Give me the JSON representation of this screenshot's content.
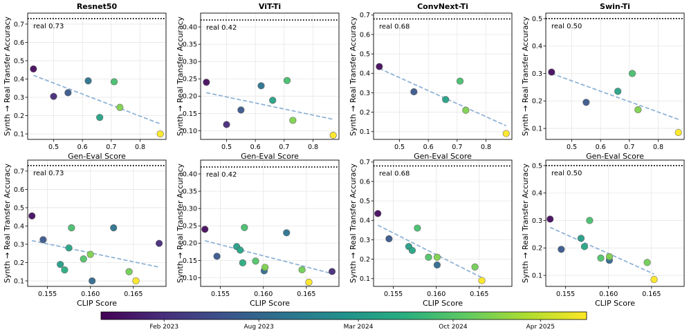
{
  "colorbar": {
    "ticks": [
      {
        "label": "Feb 2023",
        "frac": 0.13
      },
      {
        "label": "Aug 2023",
        "frac": 0.325
      },
      {
        "label": "Mar 2024",
        "frac": 0.53
      },
      {
        "label": "Oct 2024",
        "frac": 0.725
      },
      {
        "label": "Apr 2025",
        "frac": 0.905
      }
    ]
  },
  "chart_data": [
    {
      "type": "scatter",
      "title": "Resnet50",
      "xlabel": "Gen-Eval Score",
      "ylabel": "Synth → Real Transfer Accuracy",
      "xlim": [
        0.41,
        0.89
      ],
      "ylim": [
        0.07,
        0.76
      ],
      "xticks": [
        {
          "v": 0.5,
          "l": "0.5"
        },
        {
          "v": 0.6,
          "l": "0.6"
        },
        {
          "v": 0.7,
          "l": "0.7"
        },
        {
          "v": 0.8,
          "l": "0.8"
        }
      ],
      "yticks": [
        {
          "v": 0.1,
          "l": "0.1"
        },
        {
          "v": 0.2,
          "l": "0.2"
        },
        {
          "v": 0.3,
          "l": "0.3"
        },
        {
          "v": 0.4,
          "l": "0.4"
        },
        {
          "v": 0.5,
          "l": "0.5"
        },
        {
          "v": 0.6,
          "l": "0.6"
        },
        {
          "v": 0.7,
          "l": "0.7"
        }
      ],
      "real": 0.73,
      "real_label": "real 0.73",
      "trend": [
        [
          0.43,
          0.42
        ],
        [
          0.87,
          0.155
        ]
      ],
      "points": [
        [
          0.43,
          0.455,
          0.03
        ],
        [
          0.5,
          0.305,
          0.12
        ],
        [
          0.55,
          0.325,
          0.27
        ],
        [
          0.62,
          0.39,
          0.38
        ],
        [
          0.66,
          0.19,
          0.57
        ],
        [
          0.71,
          0.385,
          0.7
        ],
        [
          0.73,
          0.245,
          0.8
        ],
        [
          0.87,
          0.1,
          1.0
        ]
      ]
    },
    {
      "type": "scatter",
      "title": "ViT-Ti",
      "xlabel": "Gen-Eval Score",
      "ylabel": "Synth → Real Transfer Accuracy",
      "xlim": [
        0.41,
        0.89
      ],
      "ylim": [
        0.075,
        0.44
      ],
      "xticks": [
        {
          "v": 0.5,
          "l": "0.5"
        },
        {
          "v": 0.6,
          "l": "0.6"
        },
        {
          "v": 0.7,
          "l": "0.7"
        },
        {
          "v": 0.8,
          "l": "0.8"
        }
      ],
      "yticks": [
        {
          "v": 0.1,
          "l": "0.10"
        },
        {
          "v": 0.15,
          "l": "0.15"
        },
        {
          "v": 0.2,
          "l": "0.20"
        },
        {
          "v": 0.25,
          "l": "0.25"
        },
        {
          "v": 0.3,
          "l": "0.30"
        },
        {
          "v": 0.35,
          "l": "0.35"
        },
        {
          "v": 0.4,
          "l": "0.40"
        }
      ],
      "real": 0.42,
      "real_label": "real 0.42",
      "trend": [
        [
          0.43,
          0.21
        ],
        [
          0.87,
          0.133
        ]
      ],
      "points": [
        [
          0.43,
          0.24,
          0.03
        ],
        [
          0.5,
          0.118,
          0.12
        ],
        [
          0.55,
          0.16,
          0.27
        ],
        [
          0.62,
          0.23,
          0.38
        ],
        [
          0.66,
          0.188,
          0.57
        ],
        [
          0.71,
          0.245,
          0.7
        ],
        [
          0.73,
          0.13,
          0.8
        ],
        [
          0.87,
          0.087,
          1.0
        ]
      ]
    },
    {
      "type": "scatter",
      "title": "ConvNext-Ti",
      "xlabel": "Gen-Eval Score",
      "ylabel": "Synth → Real Transfer Accuracy",
      "xlim": [
        0.41,
        0.89
      ],
      "ylim": [
        0.06,
        0.71
      ],
      "xticks": [
        {
          "v": 0.5,
          "l": "0.5"
        },
        {
          "v": 0.6,
          "l": "0.6"
        },
        {
          "v": 0.7,
          "l": "0.7"
        },
        {
          "v": 0.8,
          "l": "0.8"
        }
      ],
      "yticks": [
        {
          "v": 0.1,
          "l": "0.1"
        },
        {
          "v": 0.2,
          "l": "0.2"
        },
        {
          "v": 0.3,
          "l": "0.3"
        },
        {
          "v": 0.4,
          "l": "0.4"
        },
        {
          "v": 0.5,
          "l": "0.5"
        },
        {
          "v": 0.6,
          "l": "0.6"
        },
        {
          "v": 0.7,
          "l": "0.7"
        }
      ],
      "real": 0.68,
      "real_label": "real 0.68",
      "trend": [
        [
          0.43,
          0.425
        ],
        [
          0.87,
          0.13
        ]
      ],
      "points": [
        [
          0.43,
          0.435,
          0.03
        ],
        [
          0.55,
          0.305,
          0.27
        ],
        [
          0.66,
          0.265,
          0.57
        ],
        [
          0.71,
          0.36,
          0.7
        ],
        [
          0.73,
          0.21,
          0.8
        ],
        [
          0.87,
          0.09,
          1.0
        ]
      ]
    },
    {
      "type": "scatter",
      "title": "Swin-Ti",
      "xlabel": "Gen-Eval Score",
      "ylabel": "Synth → Real Transfer Accuracy",
      "xlim": [
        0.41,
        0.89
      ],
      "ylim": [
        0.06,
        0.52
      ],
      "xticks": [
        {
          "v": 0.5,
          "l": "0.5"
        },
        {
          "v": 0.6,
          "l": "0.6"
        },
        {
          "v": 0.7,
          "l": "0.7"
        },
        {
          "v": 0.8,
          "l": "0.8"
        }
      ],
      "yticks": [
        {
          "v": 0.1,
          "l": "0.1"
        },
        {
          "v": 0.2,
          "l": "0.2"
        },
        {
          "v": 0.3,
          "l": "0.3"
        },
        {
          "v": 0.4,
          "l": "0.4"
        },
        {
          "v": 0.5,
          "l": "0.5"
        }
      ],
      "real": 0.5,
      "real_label": "real 0.50",
      "trend": [
        [
          0.43,
          0.3
        ],
        [
          0.87,
          0.133
        ]
      ],
      "points": [
        [
          0.43,
          0.305,
          0.03
        ],
        [
          0.55,
          0.195,
          0.27
        ],
        [
          0.66,
          0.235,
          0.57
        ],
        [
          0.71,
          0.3,
          0.7
        ],
        [
          0.73,
          0.168,
          0.8
        ],
        [
          0.87,
          0.085,
          1.0
        ]
      ]
    },
    {
      "type": "scatter",
      "title": "",
      "xlabel": "CLIP Score",
      "ylabel": "Synth → Real Transfer Accuracy",
      "xlim": [
        0.1527,
        0.1688
      ],
      "ylim": [
        0.07,
        0.76
      ],
      "xticks": [
        {
          "v": 0.155,
          "l": "0.155"
        },
        {
          "v": 0.16,
          "l": "0.160"
        },
        {
          "v": 0.165,
          "l": "0.165"
        }
      ],
      "yticks": [
        {
          "v": 0.1,
          "l": "0.1"
        },
        {
          "v": 0.2,
          "l": "0.2"
        },
        {
          "v": 0.3,
          "l": "0.3"
        },
        {
          "v": 0.4,
          "l": "0.4"
        },
        {
          "v": 0.5,
          "l": "0.5"
        },
        {
          "v": 0.6,
          "l": "0.6"
        },
        {
          "v": 0.7,
          "l": "0.7"
        }
      ],
      "real": 0.73,
      "real_label": "real 0.73",
      "trend": [
        [
          0.1532,
          0.32
        ],
        [
          0.168,
          0.175
        ]
      ],
      "points": [
        [
          0.1532,
          0.455,
          0.03
        ],
        [
          0.168,
          0.305,
          0.12
        ],
        [
          0.1545,
          0.325,
          0.27
        ],
        [
          0.1627,
          0.39,
          0.38
        ],
        [
          0.1602,
          0.1,
          0.34
        ],
        [
          0.1565,
          0.19,
          0.55
        ],
        [
          0.1575,
          0.28,
          0.58
        ],
        [
          0.1578,
          0.39,
          0.7
        ],
        [
          0.157,
          0.16,
          0.62
        ],
        [
          0.1592,
          0.22,
          0.72
        ],
        [
          0.16,
          0.245,
          0.8
        ],
        [
          0.1645,
          0.15,
          0.78
        ],
        [
          0.1653,
          0.1,
          1.0
        ]
      ]
    },
    {
      "type": "scatter",
      "title": "",
      "xlabel": "CLIP Score",
      "ylabel": "Synth → Real Transfer Accuracy",
      "xlim": [
        0.1527,
        0.1688
      ],
      "ylim": [
        0.075,
        0.44
      ],
      "xticks": [
        {
          "v": 0.155,
          "l": "0.155"
        },
        {
          "v": 0.16,
          "l": "0.160"
        },
        {
          "v": 0.165,
          "l": "0.165"
        }
      ],
      "yticks": [
        {
          "v": 0.1,
          "l": "0.10"
        },
        {
          "v": 0.15,
          "l": "0.15"
        },
        {
          "v": 0.2,
          "l": "0.20"
        },
        {
          "v": 0.25,
          "l": "0.25"
        },
        {
          "v": 0.3,
          "l": "0.30"
        },
        {
          "v": 0.35,
          "l": "0.35"
        },
        {
          "v": 0.4,
          "l": "0.40"
        }
      ],
      "real": 0.42,
      "real_label": "real 0.42",
      "trend": [
        [
          0.1532,
          0.207
        ],
        [
          0.168,
          0.112
        ]
      ],
      "points": [
        [
          0.1532,
          0.24,
          0.03
        ],
        [
          0.168,
          0.118,
          0.12
        ],
        [
          0.1546,
          0.162,
          0.27
        ],
        [
          0.1627,
          0.23,
          0.38
        ],
        [
          0.1601,
          0.12,
          0.34
        ],
        [
          0.1569,
          0.19,
          0.55
        ],
        [
          0.1573,
          0.18,
          0.58
        ],
        [
          0.1578,
          0.245,
          0.7
        ],
        [
          0.1576,
          0.143,
          0.62
        ],
        [
          0.1591,
          0.148,
          0.72
        ],
        [
          0.1602,
          0.13,
          0.8
        ],
        [
          0.1645,
          0.123,
          0.78
        ],
        [
          0.1653,
          0.087,
          1.0
        ]
      ]
    },
    {
      "type": "scatter",
      "title": "",
      "xlabel": "CLIP Score",
      "ylabel": "Synth → Real Transfer Accuracy",
      "xlim": [
        0.1527,
        0.1688
      ],
      "ylim": [
        0.06,
        0.71
      ],
      "xticks": [
        {
          "v": 0.155,
          "l": "0.155"
        },
        {
          "v": 0.16,
          "l": "0.160"
        },
        {
          "v": 0.165,
          "l": "0.165"
        }
      ],
      "yticks": [
        {
          "v": 0.1,
          "l": "0.1"
        },
        {
          "v": 0.2,
          "l": "0.2"
        },
        {
          "v": 0.3,
          "l": "0.3"
        },
        {
          "v": 0.4,
          "l": "0.4"
        },
        {
          "v": 0.5,
          "l": "0.5"
        },
        {
          "v": 0.6,
          "l": "0.6"
        },
        {
          "v": 0.7,
          "l": "0.7"
        }
      ],
      "real": 0.68,
      "real_label": "real 0.68",
      "trend": [
        [
          0.1532,
          0.375
        ],
        [
          0.1653,
          0.105
        ]
      ],
      "points": [
        [
          0.1532,
          0.435,
          0.03
        ],
        [
          0.1545,
          0.305,
          0.27
        ],
        [
          0.1601,
          0.17,
          0.34
        ],
        [
          0.1568,
          0.265,
          0.55
        ],
        [
          0.1572,
          0.245,
          0.58
        ],
        [
          0.1578,
          0.36,
          0.7
        ],
        [
          0.1591,
          0.21,
          0.72
        ],
        [
          0.1601,
          0.21,
          0.8
        ],
        [
          0.1645,
          0.16,
          0.78
        ],
        [
          0.1653,
          0.09,
          1.0
        ]
      ]
    },
    {
      "type": "scatter",
      "title": "",
      "xlabel": "CLIP Score",
      "ylabel": "Synth → Real Transfer Accuracy",
      "xlim": [
        0.1527,
        0.1688
      ],
      "ylim": [
        0.06,
        0.52
      ],
      "xticks": [
        {
          "v": 0.155,
          "l": "0.155"
        },
        {
          "v": 0.16,
          "l": "0.160"
        },
        {
          "v": 0.165,
          "l": "0.165"
        }
      ],
      "yticks": [
        {
          "v": 0.1,
          "l": "0.1"
        },
        {
          "v": 0.2,
          "l": "0.2"
        },
        {
          "v": 0.3,
          "l": "0.3"
        },
        {
          "v": 0.4,
          "l": "0.4"
        },
        {
          "v": 0.5,
          "l": "0.5"
        }
      ],
      "real": 0.5,
      "real_label": "real 0.50",
      "trend": [
        [
          0.1532,
          0.275
        ],
        [
          0.1653,
          0.105
        ]
      ],
      "points": [
        [
          0.1532,
          0.305,
          0.03
        ],
        [
          0.1545,
          0.195,
          0.27
        ],
        [
          0.1601,
          0.155,
          0.34
        ],
        [
          0.1568,
          0.235,
          0.55
        ],
        [
          0.1572,
          0.205,
          0.58
        ],
        [
          0.1578,
          0.3,
          0.7
        ],
        [
          0.1591,
          0.163,
          0.72
        ],
        [
          0.1601,
          0.168,
          0.8
        ],
        [
          0.1645,
          0.147,
          0.78
        ],
        [
          0.1653,
          0.085,
          1.0
        ]
      ]
    }
  ]
}
